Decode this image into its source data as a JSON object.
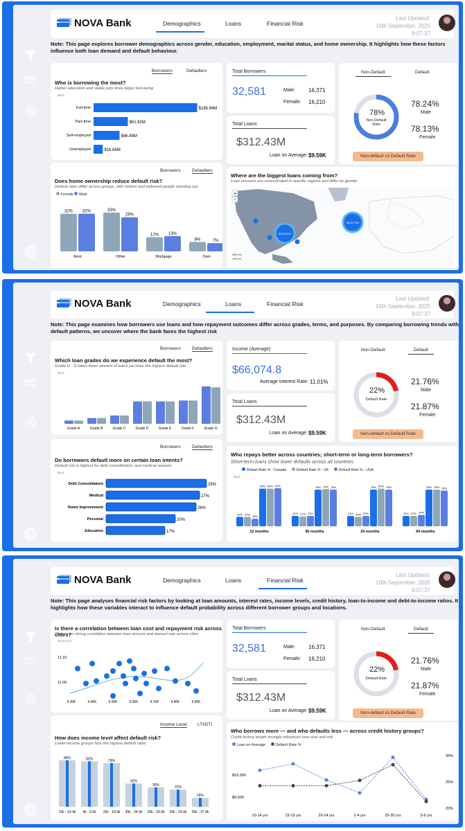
{
  "brand": "NOVA Bank",
  "tabs": [
    "Demographics",
    "Loans",
    "Financial Risk"
  ],
  "updated_label": "Last Updated:",
  "updated_date": "16th September, 2025",
  "updated_time": "8:07:37",
  "sidebar_reset": "RESET",
  "back_label": "Back",
  "p1": {
    "note": "Note: This page explores borrower demographics across gender, education, employment, marital status, and home ownership. It highlights how these factors influence both loan demand and default behaviour.",
    "borrow": {
      "title": "Who is borrowing the most?",
      "sub": "Higher education and stable jobs drive larger borrowing",
      "tab_a": "Borrowers",
      "tab_b": "Defaulters",
      "bars": [
        {
          "label": "Full-time",
          "value": 186.94,
          "text": "$186.94M"
        },
        {
          "label": "Part-time",
          "value": 61.92,
          "text": "$61.92M"
        },
        {
          "label": "Self-employed",
          "value": 46.88,
          "text": "$46.88M"
        },
        {
          "label": "Unemployed",
          "value": 16.69,
          "text": "$16.69M"
        }
      ]
    },
    "kpi_borrowers": {
      "title": "Total Borrowers",
      "value": "32,581",
      "male_label": "Male:",
      "male": "16,371",
      "female_label": "Female:",
      "female": "16,210"
    },
    "kpi_loans": {
      "title": "Total Loans",
      "value": "$312.43M",
      "avg_label": "Loan on Average:",
      "avg": "$9.59K"
    },
    "donut": {
      "tab_a": "Non-Default",
      "tab_b": "Default",
      "pct": 78,
      "center": "78%",
      "center_label": "Non-Default Rate",
      "male_pct": "78.24%",
      "male": "Male",
      "female_pct": "78.13%",
      "female": "Female",
      "button": "Non-default vs Default Rate"
    },
    "home": {
      "title": "Does home ownership reduce default risk?",
      "sub": "Default rates differ across groups, with renters and widowed people standing out.",
      "tab_a": "Borrowers",
      "tab_b": "Defaulters",
      "legend_female": "Female",
      "legend_male": "Male",
      "groups": [
        {
          "label": "Rent",
          "female": 32,
          "male": 32,
          "ft": "32%",
          "mt": "32%"
        },
        {
          "label": "Other",
          "female": 33,
          "male": 29,
          "ft": "33%",
          "mt": "29%"
        },
        {
          "label": "Mortgage",
          "female": 12,
          "male": 13,
          "ft": "12%",
          "mt": "13%"
        },
        {
          "label": "Own",
          "female": 8,
          "male": 7,
          "ft": "8%",
          "mt": "7%"
        }
      ]
    },
    "map": {
      "title": "Where are the biggest loans coming from?",
      "sub": "Loan amounts are concentrated in specific regions and differ by gender",
      "bubble_a": "$100.91M",
      "bubble_b": "$104.79M",
      "scale_a": "2000 km",
      "scale_b": "1000 mi"
    }
  },
  "p2": {
    "note": "Note: This page examines how borrowers use loans and how repayment outcomes differ across grades, terms, and purposes. By comparing borrowing trends with default patterns, we uncover where the bank faces the highest risk",
    "grades": {
      "title": "Which loan grades do we experience default the most?",
      "sub": "Grade D - G takes lower amount of loans yet have the highest default rate",
      "tab_a": "Borrowers",
      "tab_b": "Defaulters",
      "labels": [
        "Grade A",
        "Grade B",
        "Grade C",
        "Grade D",
        "Grade E",
        "Grade F",
        "Grade G"
      ],
      "female": [
        4,
        7,
        10,
        27,
        27,
        28,
        45
      ],
      "male": [
        4,
        7,
        10,
        27,
        27,
        28,
        44
      ]
    },
    "income": {
      "title": "Income (Average)",
      "value": "$66,074.8",
      "rate_label": "Average Interest Rate:",
      "rate": "11.01%"
    },
    "kpi_loans": {
      "title": "Total Loans",
      "value": "$312.43M",
      "avg_label": "Loan on Average:",
      "avg": "$9.59K"
    },
    "donut": {
      "tab_a": "Non-Default",
      "tab_b": "Default",
      "pct": 22,
      "center": "22%",
      "center_label": "Default Rate",
      "male_pct": "21.76%",
      "male": "Male",
      "female_pct": "21.87%",
      "female": "Female",
      "button": "Non-default vs Default Rate"
    },
    "intent": {
      "title": "Do borrowers default more on certain loan intents?",
      "sub": "Default risk is highest for debt consolidation, and medical reasons",
      "tab_a": "Borrowers",
      "tab_b": "Defaulters",
      "bars": [
        {
          "label": "Debt Consolidation",
          "value": 29,
          "text": "29%"
        },
        {
          "label": "Medical",
          "value": 27,
          "text": "27%"
        },
        {
          "label": "Home Improvement",
          "value": 26,
          "text": "26%"
        },
        {
          "label": "Personal",
          "value": 20,
          "text": "20%"
        },
        {
          "label": "Education",
          "value": 17,
          "text": "17%"
        }
      ]
    },
    "terms": {
      "title": "Who repays better across countries; short-term or long-term borrowers?",
      "sub": "Short-term loans show lower defaults across all countries",
      "legend": [
        "Default Rate % - Canada",
        "Default Rate % - UK",
        "Default Rate % - USA"
      ],
      "groups": [
        {
          "label": "12 months",
          "vals": [
            20,
            20,
            16,
            80,
            80,
            81
          ]
        },
        {
          "label": "36 months",
          "vals": [
            22,
            21,
            22,
            78,
            79,
            78
          ]
        },
        {
          "label": "24 months",
          "vals": [
            22,
            20,
            22,
            78,
            80,
            78
          ]
        },
        {
          "label": "60 months",
          "vals": [
            22,
            22,
            24,
            78,
            78,
            76
          ]
        }
      ]
    }
  },
  "p3": {
    "note": "Note: This page analyses financial risk factors by looking at loan amounts, interest rates, income levels, credit history, loan-to-income and debt-to-income ratios. It highlights how these variables interact to influence default probability across different borrower groups and locations.",
    "scatter": {
      "title": "Is there a correlation between loan cost and repayment risk across cities?",
      "sub": "There's no strong correlation between loan amount and interest rate across cities",
      "zoom": "Zoom Out",
      "x_ticks": [
        "9.30K",
        "9.40K",
        "9.50K",
        "9.60K",
        "9.70K",
        "9.80K",
        "9.90K"
      ],
      "y_ticks": [
        "11.10",
        "11.00"
      ],
      "points": [
        [
          9.33,
          11.06
        ],
        [
          9.37,
          11.0
        ],
        [
          9.4,
          11.08
        ],
        [
          9.42,
          11.01
        ],
        [
          9.47,
          11.03
        ],
        [
          9.5,
          11.05
        ],
        [
          9.5,
          10.95
        ],
        [
          9.53,
          11.08
        ],
        [
          9.55,
          11.03
        ],
        [
          9.56,
          11.0
        ],
        [
          9.58,
          11.09
        ],
        [
          9.6,
          11.06
        ],
        [
          9.61,
          11.02
        ],
        [
          9.63,
          10.96
        ],
        [
          9.65,
          11.04
        ],
        [
          9.66,
          11.0
        ],
        [
          9.7,
          11.05
        ],
        [
          9.72,
          10.98
        ],
        [
          9.76,
          11.06
        ],
        [
          9.8,
          11.01
        ],
        [
          9.86,
          11.0
        ],
        [
          9.9,
          10.97
        ]
      ]
    },
    "kpi_borrowers": {
      "title": "Total Borrowers",
      "value": "32,581",
      "male_label": "Male:",
      "male": "16,371",
      "female_label": "Female:",
      "female": "16,210"
    },
    "kpi_loans": {
      "title": "Total Loans",
      "value": "$312.43M",
      "avg_label": "Loan on Average:",
      "avg": "$9.59K"
    },
    "donut": {
      "tab_a": "Non-Default",
      "tab_b": "Default",
      "pct": 22,
      "center": "22%",
      "center_label": "Default Rate",
      "male_pct": "21.76%",
      "male": "Male",
      "female_pct": "21.87%",
      "female": "Female",
      "button": "Non-default vs Default Rate"
    },
    "income": {
      "title": "How does income level affect default risk?",
      "sub": "Lower-income groups face the highest default rates",
      "tab_a": "Income Level",
      "tab_b": "LTI/DTI",
      "bars": [
        {
          "label": "10k - 14.9k",
          "value": 84,
          "text": "84%"
        },
        {
          "label": "4k - 9.9k",
          "value": 82,
          "text": "82%"
        },
        {
          "label": "15k - 19.9k",
          "value": 79,
          "text": "79%"
        },
        {
          "label": "30k - 34.9k",
          "value": 42,
          "text": "42%"
        },
        {
          "label": "25k - 29.9k",
          "value": 35,
          "text": "35%"
        },
        {
          "label": "20k - 24.9k",
          "value": 31,
          "text": "31%"
        },
        {
          "label": "35k - 37.4k",
          "value": 16,
          "text": "16%"
        }
      ]
    },
    "credit": {
      "title": "Who borrows more — and who defaults less — across credit history groups?",
      "sub": "Credit history length strongly influences loan size and risk",
      "legend_a": "Loan on Average",
      "legend_b": "Default Rate %",
      "labels": [
        "10-14 yrs",
        "15-19 yrs",
        "20-24 yrs",
        "2-4 yrs",
        "25-30 yrs",
        "5-9 yrs"
      ],
      "loan": [
        9900,
        10100,
        9600,
        9200,
        10300,
        9000
      ],
      "rate": [
        24,
        24,
        24,
        25,
        28,
        21
      ],
      "y_left": [
        "$10,000",
        "$9,500"
      ],
      "y_right": [
        "30%",
        "25%",
        "20%"
      ]
    }
  }
}
